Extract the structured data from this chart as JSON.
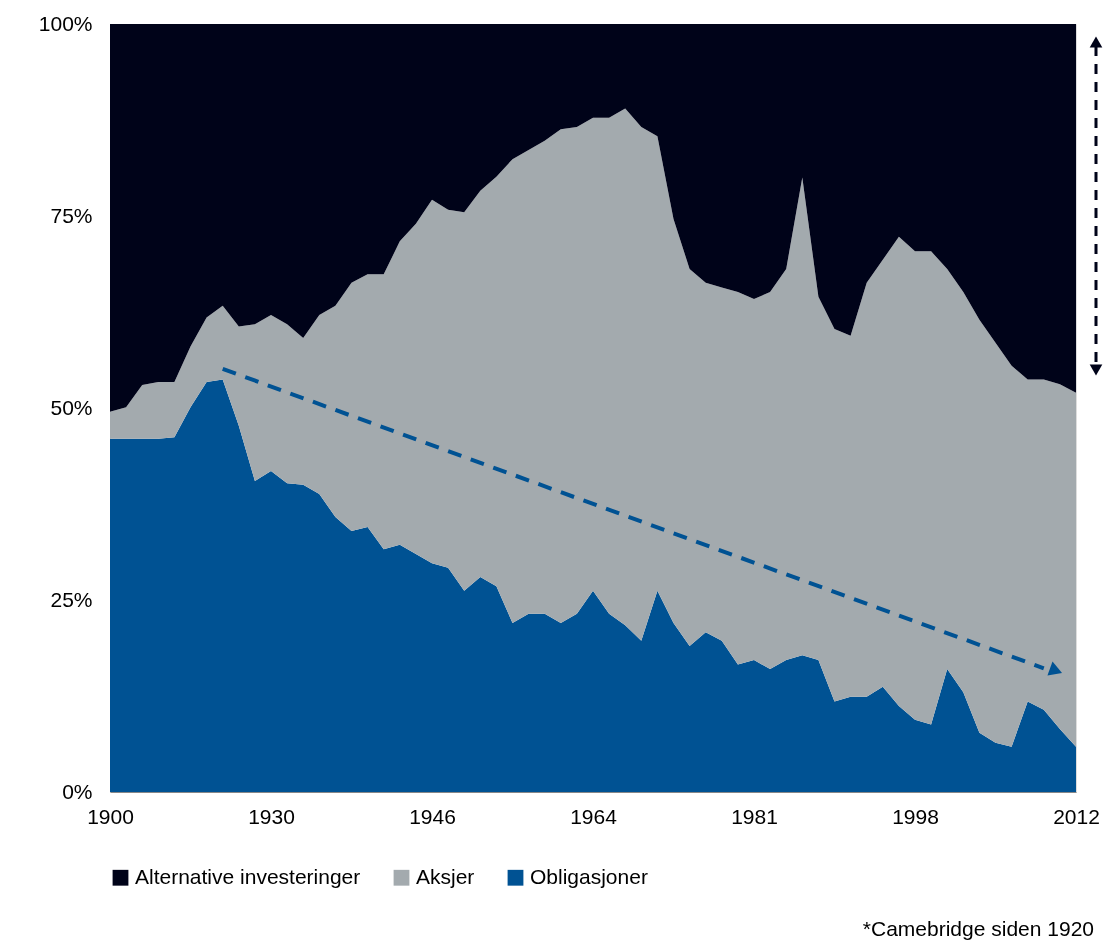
{
  "chart_data": {
    "type": "area",
    "stacked": true,
    "categories": [
      "1900",
      null,
      null,
      null,
      null,
      null,
      null,
      null,
      null,
      null,
      "1930",
      null,
      null,
      null,
      null,
      null,
      null,
      null,
      null,
      null,
      "1946",
      null,
      null,
      null,
      null,
      null,
      null,
      null,
      null,
      null,
      "1964",
      null,
      null,
      null,
      null,
      null,
      null,
      null,
      null,
      null,
      "1981",
      null,
      null,
      null,
      null,
      null,
      null,
      null,
      null,
      null,
      "1998",
      null,
      null,
      null,
      null,
      null,
      null,
      null,
      null,
      null,
      "2012"
    ],
    "series": [
      {
        "name": "Obligasjoner",
        "color": "#005293",
        "values": [
          46,
          46,
          46,
          46,
          46.2,
          50.1,
          53.4,
          53.7,
          47.7,
          40.5,
          41.8,
          40.2,
          40,
          38.8,
          35.8,
          34,
          34.5,
          31.6,
          32.2,
          31,
          29.8,
          29.2,
          26.2,
          28,
          26.8,
          22,
          23.2,
          23.2,
          22,
          23.2,
          26.2,
          23.2,
          21.7,
          19.7,
          26.2,
          22,
          19,
          20.8,
          19.7,
          16.6,
          17.2,
          16,
          17.2,
          17.8,
          17.2,
          11.8,
          12.4,
          12.4,
          13.7,
          11.2,
          9.4,
          8.8,
          16,
          13,
          7.7,
          6.4,
          5.9,
          11.8,
          10.7,
          8.2,
          5.9
        ]
      },
      {
        "name": "Aksjer",
        "color": "#a3aaae",
        "values": [
          3.5,
          4.1,
          7,
          7.4,
          7.2,
          7.9,
          8.4,
          9.6,
          12.9,
          20.4,
          20.3,
          20.7,
          19.1,
          23.3,
          27.5,
          32.3,
          32.9,
          35.8,
          39.5,
          43,
          47.3,
          46.6,
          49.3,
          50.3,
          53.3,
          60.4,
          60.4,
          61.6,
          64.3,
          63.4,
          61.6,
          64.6,
          67.3,
          66.9,
          59.2,
          52.6,
          49.1,
          45.5,
          46,
          48.5,
          47,
          49.1,
          50.9,
          62.2,
          47.3,
          48.5,
          47,
          53.9,
          55.6,
          61.1,
          61,
          61.6,
          52.1,
          52.1,
          53.8,
          52.1,
          49.6,
          41.9,
          43,
          44.9,
          46.1
        ]
      },
      {
        "name": "Alternative investeringer",
        "color": "#000319",
        "values": [
          50.5,
          49.9,
          47,
          46.6,
          46.6,
          42,
          38.2,
          36.7,
          39.4,
          39.1,
          37.9,
          39.1,
          40.9,
          37.9,
          36.7,
          33.7,
          32.6,
          32.6,
          28.3,
          26,
          22.9,
          24.2,
          24.5,
          21.7,
          19.9,
          17.6,
          16.4,
          15.2,
          13.7,
          13.4,
          12.2,
          12.2,
          11,
          13.4,
          14.6,
          25.4,
          31.9,
          33.7,
          34.3,
          34.9,
          35.8,
          34.9,
          31.9,
          20,
          35.5,
          39.7,
          40.6,
          33.7,
          30.7,
          27.7,
          29.6,
          29.6,
          31.9,
          34.9,
          38.5,
          41.5,
          44.5,
          46.3,
          46.3,
          46.9,
          48
        ]
      },
      {
        "type": "line",
        "color": "#005293",
        "line_style": "dashed",
        "values": [
          null,
          null,
          null,
          null,
          null,
          null,
          null,
          55.1,
          null,
          null,
          null,
          null,
          null,
          null,
          null,
          null,
          null,
          null,
          null,
          null,
          null,
          null,
          null,
          null,
          null,
          null,
          null,
          null,
          null,
          null,
          null,
          null,
          null,
          null,
          null,
          null,
          null,
          null,
          null,
          null,
          null,
          null,
          null,
          null,
          null,
          null,
          null,
          null,
          null,
          null,
          null,
          null,
          null,
          null,
          null,
          null,
          null,
          null,
          16.1,
          null,
          null
        ]
      }
    ],
    "ylim": [
      0,
      100
    ],
    "yticks": [
      {
        "value": 0,
        "label": "0%"
      },
      {
        "value": 25,
        "label": "25%"
      },
      {
        "value": 50,
        "label": "50%"
      },
      {
        "value": 75,
        "label": "75%"
      },
      {
        "value": 100,
        "label": "100%"
      }
    ],
    "grid": false,
    "legend": "bottom",
    "annotations": [
      "*Camebridge siden 1920"
    ]
  }
}
